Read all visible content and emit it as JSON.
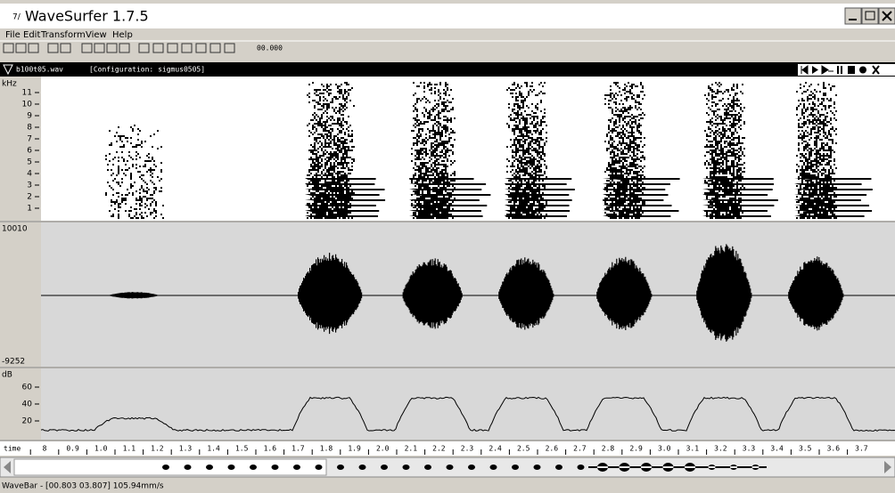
{
  "window": {
    "title": "WaveSurfer 1.7.5"
  },
  "menu": [
    "File",
    "Edit",
    "Transform",
    "View",
    "Help"
  ],
  "toolbar": {
    "time": "00.000"
  },
  "sound": {
    "file": "b100t05.wav",
    "configuration": "[Configuration: sigmus0505]"
  },
  "spectrogram": {
    "unit": "kHz",
    "ticks": [
      "11",
      "10",
      "9",
      "8",
      "7",
      "6",
      "5",
      "4",
      "3",
      "2",
      "1"
    ]
  },
  "waveform": {
    "max": "10010",
    "min": "-9252"
  },
  "power": {
    "unit": "dB",
    "ticks": [
      "60",
      "40",
      "20"
    ]
  },
  "time_axis": {
    "label": "time",
    "ticks": [
      "8",
      "0.9",
      "1.0",
      "1.1",
      "1.2",
      "1.3",
      "1.4",
      "1.5",
      "1.6",
      "1.7",
      "1.8",
      "1.9",
      "2.0",
      "2.1",
      "2.2",
      "2.3",
      "2.4",
      "2.5",
      "2.6",
      "2.7",
      "2.8",
      "2.9",
      "3.0",
      "3.1",
      "3.2",
      "3.3",
      "3.4",
      "3.5",
      "3.6",
      "3.7"
    ]
  },
  "status": "WaveBar - [00.803 03.807] 105.94mm/s"
}
